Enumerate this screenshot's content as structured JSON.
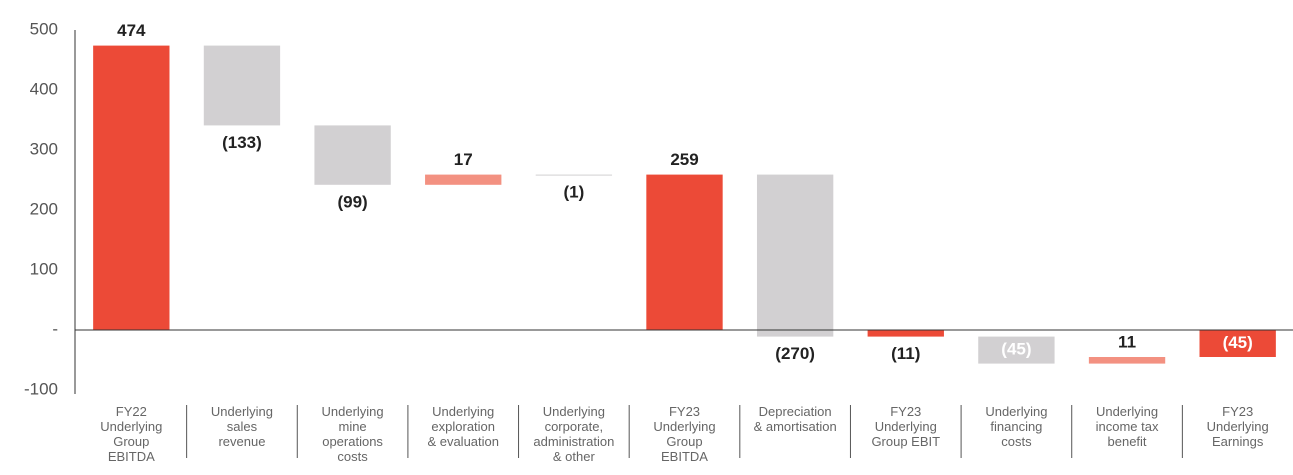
{
  "chart_data": {
    "type": "waterfall",
    "categories": [
      [
        "FY22",
        "Underlying",
        "Group",
        "EBITDA"
      ],
      [
        "Underlying",
        "sales",
        "revenue"
      ],
      [
        "Underlying",
        "mine",
        "operations",
        "costs"
      ],
      [
        "Underlying",
        "exploration",
        "& evaluation"
      ],
      [
        "Underlying",
        "corporate,",
        "administration",
        "& other"
      ],
      [
        "FY23",
        "Underlying",
        "Group",
        "EBITDA"
      ],
      [
        "Depreciation",
        "& amortisation"
      ],
      [
        "FY23",
        "Underlying",
        "Group EBIT"
      ],
      [
        "Underlying",
        "financing",
        "costs"
      ],
      [
        "Underlying",
        "income tax",
        "benefit"
      ],
      [
        "FY23",
        "Underlying",
        "Earnings"
      ]
    ],
    "measure": [
      "absolute",
      "relative",
      "relative",
      "relative",
      "relative",
      "absolute",
      "relative",
      "absolute",
      "relative",
      "relative",
      "absolute"
    ],
    "values": [
      474,
      -133,
      -99,
      17,
      -1,
      259,
      -270,
      -11,
      -45,
      11,
      -45
    ],
    "value_labels": [
      "474",
      "(133)",
      "(99)",
      "17",
      "(1)",
      "259",
      "(270)",
      "(11)",
      "(45)",
      "11",
      "(45)"
    ],
    "colors": {
      "total": "#ec4a37",
      "increase": "#f39181",
      "decrease": "#d2d0d2"
    },
    "ylim": [
      -100,
      500
    ],
    "yticks": [
      -100,
      {
        "value": 0,
        "label": "-"
      },
      100,
      200,
      300,
      400,
      500
    ]
  }
}
